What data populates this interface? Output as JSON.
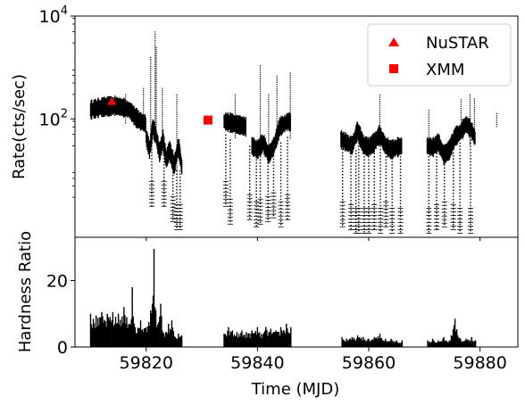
{
  "chart_data": [
    {
      "panel": "top",
      "type": "scatter",
      "ylabel": "Rate(cts/sec)",
      "yscale": "log",
      "ylim": [
        0.5,
        10000
      ],
      "xlim": [
        59807.2,
        59886.8
      ],
      "ytick_labels": [
        {
          "value": 100,
          "base": "10",
          "exp": "2"
        },
        {
          "value": 10000,
          "base": "10",
          "exp": "4"
        }
      ],
      "legend": {
        "placement": "top-right",
        "entries": [
          {
            "label": "NuSTAR",
            "marker": "triangle",
            "color": "#ff0000"
          },
          {
            "label": "XMM",
            "marker": "square",
            "color": "#ff0000"
          }
        ]
      },
      "series": [
        {
          "name": "NuSTAR",
          "marker": "triangle",
          "color": "#ff0000",
          "points": [
            {
              "x": 59813.8,
              "y": 220
            }
          ]
        },
        {
          "name": "XMM",
          "marker": "square",
          "color": "#ff0000",
          "points": [
            {
              "x": 59831.1,
              "y": 95
            }
          ]
        }
      ],
      "light_curve": {
        "color": "#000000",
        "segments": [
          {
            "x": [
              59810.0,
              59811.5,
              59813.0,
              59814.5,
              59816.0,
              59817.0,
              59818.0,
              59819.0,
              59820.0
            ],
            "y": [
              150,
              165,
              175,
              180,
              165,
              150,
              110,
              90,
              80
            ]
          },
          {
            "x": [
              59820.0,
              59820.6,
              59821.2,
              59821.8,
              59822.4,
              59823.0,
              59823.6,
              59824.2,
              59825.0,
              59825.8,
              59826.5
            ],
            "y": [
              45,
              25,
              70,
              45,
              22,
              40,
              16,
              25,
              12,
              30,
              10
            ]
          },
          {
            "x": [
              59834.0,
              59835.0,
              59836.0,
              59837.0,
              59838.0
            ],
            "y": [
              90,
              85,
              80,
              75,
              70
            ]
          },
          {
            "x": [
              59839.0,
              59840.0,
              59841.0,
              59842.0,
              59843.0,
              59844.0,
              59845.5,
              59846.0
            ],
            "y": [
              30,
              25,
              35,
              20,
              30,
              70,
              90,
              85
            ]
          },
          {
            "x": [
              59855.0,
              59856.0,
              59857.0,
              59858.0,
              59859.0,
              59860.0,
              59861.0,
              59862.0,
              59863.0,
              59864.0,
              59865.0,
              59866.0
            ],
            "y": [
              40,
              35,
              30,
              60,
              32,
              28,
              35,
              50,
              30,
              25,
              28,
              30
            ]
          },
          {
            "x": [
              59870.5,
              59871.5,
              59872.5,
              59873.5,
              59874.5,
              59875.5,
              59876.5,
              59877.5,
              59878.5,
              59879.2
            ],
            "y": [
              30,
              28,
              35,
              20,
              25,
              45,
              55,
              80,
              60,
              40
            ]
          }
        ],
        "spikes": [
          {
            "x": 59816.3,
            "low": 80,
            "high": 300
          },
          {
            "x": 59819.5,
            "low": 60,
            "high": 400
          },
          {
            "x": 59820.8,
            "low": 60,
            "high": 1600
          },
          {
            "x": 59821.6,
            "low": 40,
            "high": 5000
          },
          {
            "x": 59821.8,
            "low": 40,
            "high": 2500
          },
          {
            "x": 59822.9,
            "low": 20,
            "high": 400
          },
          {
            "x": 59825.5,
            "low": 10,
            "high": 300
          },
          {
            "x": 59836.0,
            "low": 40,
            "high": 300
          },
          {
            "x": 59840.5,
            "low": 20,
            "high": 1100
          },
          {
            "x": 59842.0,
            "low": 20,
            "high": 300
          },
          {
            "x": 59843.5,
            "low": 30,
            "high": 700
          },
          {
            "x": 59845.9,
            "low": 40,
            "high": 800
          },
          {
            "x": 59862.0,
            "low": 30,
            "high": 300
          },
          {
            "x": 59870.8,
            "low": 20,
            "high": 150
          },
          {
            "x": 59876.6,
            "low": 40,
            "high": 240
          },
          {
            "x": 59878.2,
            "low": 30,
            "high": 300
          },
          {
            "x": 59879.0,
            "low": 30,
            "high": 250
          },
          {
            "x": 59883.0,
            "low": 70,
            "high": 130
          }
        ],
        "dips": [
          {
            "x": 59821.0,
            "high": 40,
            "low": 2
          },
          {
            "x": 59823.2,
            "high": 20,
            "low": 2
          },
          {
            "x": 59824.8,
            "high": 25,
            "low": 1
          },
          {
            "x": 59825.5,
            "high": 10,
            "low": 0.7
          },
          {
            "x": 59826.1,
            "high": 10,
            "low": 0.7
          },
          {
            "x": 59834.3,
            "high": 50,
            "low": 2
          },
          {
            "x": 59835.1,
            "high": 40,
            "low": 0.9
          },
          {
            "x": 59838.6,
            "high": 30,
            "low": 1.1
          },
          {
            "x": 59839.8,
            "high": 25,
            "low": 0.8
          },
          {
            "x": 59840.5,
            "high": 25,
            "low": 0.9
          },
          {
            "x": 59841.9,
            "high": 25,
            "low": 1.0
          },
          {
            "x": 59842.9,
            "high": 30,
            "low": 1.2
          },
          {
            "x": 59844.2,
            "high": 35,
            "low": 0.8
          },
          {
            "x": 59845.4,
            "high": 45,
            "low": 1.1
          },
          {
            "x": 59855.3,
            "high": 30,
            "low": 0.8
          },
          {
            "x": 59856.8,
            "high": 25,
            "low": 0.7
          },
          {
            "x": 59857.7,
            "high": 25,
            "low": 0.6
          },
          {
            "x": 59858.2,
            "high": 40,
            "low": 0.6
          },
          {
            "x": 59859.2,
            "high": 25,
            "low": 0.6
          },
          {
            "x": 59860.0,
            "high": 25,
            "low": 0.6
          },
          {
            "x": 59861.0,
            "high": 25,
            "low": 0.7
          },
          {
            "x": 59862.1,
            "high": 40,
            "low": 0.6
          },
          {
            "x": 59863.1,
            "high": 25,
            "low": 0.8
          },
          {
            "x": 59864.2,
            "high": 20,
            "low": 0.6
          },
          {
            "x": 59865.7,
            "high": 25,
            "low": 0.6
          },
          {
            "x": 59870.8,
            "high": 25,
            "low": 0.6
          },
          {
            "x": 59872.2,
            "high": 25,
            "low": 0.7
          },
          {
            "x": 59873.6,
            "high": 20,
            "low": 0.8
          },
          {
            "x": 59875.2,
            "high": 30,
            "low": 0.7
          },
          {
            "x": 59876.4,
            "high": 35,
            "low": 0.6
          },
          {
            "x": 59878.3,
            "high": 40,
            "low": 0.6
          }
        ]
      }
    },
    {
      "panel": "bottom",
      "type": "line",
      "xlabel": "Time (MJD)",
      "ylabel": "Hardness Ratio",
      "xlim": [
        59807.2,
        59886.8
      ],
      "ylim": [
        0,
        33
      ],
      "xticks": [
        59820,
        59840,
        59860,
        59880
      ],
      "yticks": [
        0,
        20
      ],
      "series": [
        {
          "color": "#000000",
          "style": "vlines",
          "points": [
            {
              "x": 59810.0,
              "y": 10
            },
            {
              "x": 59811.0,
              "y": 9.5
            },
            {
              "x": 59812.0,
              "y": 10.5
            },
            {
              "x": 59813.0,
              "y": 10
            },
            {
              "x": 59814.0,
              "y": 10.5
            },
            {
              "x": 59815.0,
              "y": 10
            },
            {
              "x": 59816.0,
              "y": 12
            },
            {
              "x": 59816.5,
              "y": 9
            },
            {
              "x": 59817.0,
              "y": 7
            },
            {
              "x": 59817.5,
              "y": 18
            },
            {
              "x": 59818.0,
              "y": 6
            },
            {
              "x": 59819.0,
              "y": 8
            },
            {
              "x": 59820.0,
              "y": 6
            },
            {
              "x": 59820.8,
              "y": 11
            },
            {
              "x": 59821.4,
              "y": 29.5
            },
            {
              "x": 59821.9,
              "y": 6
            },
            {
              "x": 59822.6,
              "y": 13
            },
            {
              "x": 59823.2,
              "y": 4
            },
            {
              "x": 59824.0,
              "y": 7
            },
            {
              "x": 59824.6,
              "y": 8
            },
            {
              "x": 59825.2,
              "y": 3
            },
            {
              "x": 59825.8,
              "y": 4
            },
            {
              "x": 59826.4,
              "y": 3.5
            },
            {
              "x": 59834.0,
              "y": 4
            },
            {
              "x": 59834.8,
              "y": 6
            },
            {
              "x": 59835.5,
              "y": 5
            },
            {
              "x": 59836.3,
              "y": 4.5
            },
            {
              "x": 59837.2,
              "y": 5
            },
            {
              "x": 59838.0,
              "y": 4.5
            },
            {
              "x": 59839.0,
              "y": 5
            },
            {
              "x": 59840.0,
              "y": 6
            },
            {
              "x": 59840.7,
              "y": 4
            },
            {
              "x": 59841.5,
              "y": 6
            },
            {
              "x": 59842.4,
              "y": 5.5
            },
            {
              "x": 59843.3,
              "y": 5
            },
            {
              "x": 59844.2,
              "y": 6
            },
            {
              "x": 59845.2,
              "y": 7
            },
            {
              "x": 59846.0,
              "y": 6
            },
            {
              "x": 59855.2,
              "y": 3
            },
            {
              "x": 59856.0,
              "y": 2.5
            },
            {
              "x": 59857.0,
              "y": 3
            },
            {
              "x": 59858.0,
              "y": 3.5
            },
            {
              "x": 59859.0,
              "y": 3
            },
            {
              "x": 59860.0,
              "y": 2.5
            },
            {
              "x": 59861.0,
              "y": 3
            },
            {
              "x": 59862.0,
              "y": 4
            },
            {
              "x": 59863.0,
              "y": 2.5
            },
            {
              "x": 59864.0,
              "y": 2.5
            },
            {
              "x": 59865.0,
              "y": 2
            },
            {
              "x": 59866.0,
              "y": 2
            },
            {
              "x": 59870.6,
              "y": 2
            },
            {
              "x": 59871.5,
              "y": 2.5
            },
            {
              "x": 59872.5,
              "y": 2
            },
            {
              "x": 59873.5,
              "y": 3
            },
            {
              "x": 59874.5,
              "y": 2
            },
            {
              "x": 59875.5,
              "y": 8.5
            },
            {
              "x": 59876.5,
              "y": 2.5
            },
            {
              "x": 59877.5,
              "y": 2.5
            },
            {
              "x": 59878.5,
              "y": 3
            },
            {
              "x": 59879.2,
              "y": 2
            }
          ]
        }
      ]
    }
  ]
}
